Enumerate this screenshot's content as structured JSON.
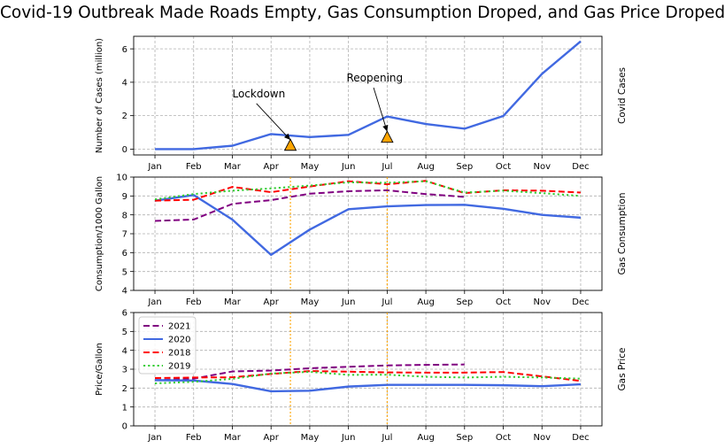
{
  "title": "Covid-19 Outbreak Made Roads Empty, Gas Consumption Droped, and Gas Price Droped",
  "months": [
    "Jan",
    "Feb",
    "Mar",
    "Apr",
    "May",
    "Jun",
    "Jul",
    "Aug",
    "Sep",
    "Oct",
    "Nov",
    "Dec"
  ],
  "colors": {
    "y2021": "#800080",
    "y2020": "#4169e1",
    "y2018": "#ff0000",
    "y2019": "#32cd32",
    "marker": "#ffa500",
    "vline": "#ffa500",
    "grid": "#b0b0b0"
  },
  "chart_data": [
    {
      "type": "line",
      "ylabel": "Number of Cases (million)",
      "right_label": "Covid Cases",
      "ylim": [
        -0.35,
        6.75
      ],
      "yticks": [
        0,
        2,
        4,
        6
      ],
      "grid": true,
      "series": [
        {
          "key": "y2020",
          "style": "solid",
          "values": [
            0.0,
            0.0,
            0.2,
            0.9,
            0.72,
            0.85,
            1.95,
            1.5,
            1.22,
            1.98,
            4.5,
            6.45
          ]
        }
      ],
      "markers": [
        {
          "x": 3.5,
          "y": 0.22
        },
        {
          "x": 6.0,
          "y": 0.7
        }
      ],
      "annotations": [
        {
          "text": "Lockdown",
          "text_x": 2.0,
          "text_y": 3.1,
          "target_x": 3.5,
          "target_y": 0.55
        },
        {
          "text": "Reopening",
          "text_x": 4.95,
          "text_y": 4.05,
          "target_x": 6.0,
          "target_y": 1.05
        }
      ]
    },
    {
      "type": "line",
      "ylabel": "Consumption/1000 Gallon",
      "right_label": "Gas Consumption",
      "ylim": [
        4,
        10
      ],
      "yticks": [
        4,
        5,
        6,
        7,
        8,
        9,
        10
      ],
      "grid": true,
      "vlines": [
        3.5,
        6.0
      ],
      "series": [
        {
          "key": "y2021",
          "style": "dashed",
          "values": [
            7.68,
            7.75,
            8.58,
            8.78,
            9.12,
            9.25,
            9.3,
            9.1,
            8.95
          ]
        },
        {
          "key": "y2020",
          "style": "solid",
          "values": [
            8.75,
            9.05,
            7.75,
            5.88,
            7.22,
            8.3,
            8.45,
            8.52,
            8.53,
            8.32,
            8.0,
            7.85
          ]
        },
        {
          "key": "y2018",
          "style": "dashed",
          "values": [
            8.75,
            8.8,
            9.48,
            9.2,
            9.5,
            9.78,
            9.62,
            9.8,
            9.15,
            9.3,
            9.28,
            9.18
          ]
        },
        {
          "key": "y2019",
          "style": "dotted",
          "values": [
            8.82,
            9.1,
            9.28,
            9.4,
            9.55,
            9.72,
            9.7,
            9.78,
            9.18,
            9.28,
            9.15,
            9.0
          ]
        }
      ]
    },
    {
      "type": "line",
      "ylabel": "Price/Gallon",
      "right_label": "Gas Price",
      "ylim": [
        0,
        6
      ],
      "yticks": [
        0,
        1,
        2,
        3,
        4,
        5,
        6
      ],
      "grid": true,
      "vlines": [
        3.5,
        6.0
      ],
      "legend": {
        "position": "upper-left",
        "entries": [
          {
            "key": "y2021",
            "label": "2021",
            "style": "dashed"
          },
          {
            "key": "y2020",
            "label": "2020",
            "style": "solid"
          },
          {
            "key": "y2018",
            "label": "2018",
            "style": "dashed"
          },
          {
            "key": "y2019",
            "label": "2019",
            "style": "dotted"
          }
        ]
      },
      "series": [
        {
          "key": "y2021",
          "style": "dashed",
          "values": [
            2.42,
            2.5,
            2.88,
            2.93,
            3.05,
            3.13,
            3.2,
            3.23,
            3.25
          ]
        },
        {
          "key": "y2020",
          "style": "solid",
          "values": [
            2.42,
            2.4,
            2.22,
            1.83,
            1.86,
            2.08,
            2.17,
            2.17,
            2.17,
            2.15,
            2.1,
            2.2
          ]
        },
        {
          "key": "y2018",
          "style": "dashed",
          "values": [
            2.53,
            2.56,
            2.57,
            2.75,
            2.9,
            2.87,
            2.83,
            2.82,
            2.82,
            2.85,
            2.62,
            2.38
          ]
        },
        {
          "key": "y2019",
          "style": "dotted",
          "values": [
            2.25,
            2.33,
            2.49,
            2.77,
            2.86,
            2.7,
            2.71,
            2.6,
            2.56,
            2.6,
            2.56,
            2.5
          ]
        }
      ]
    }
  ]
}
